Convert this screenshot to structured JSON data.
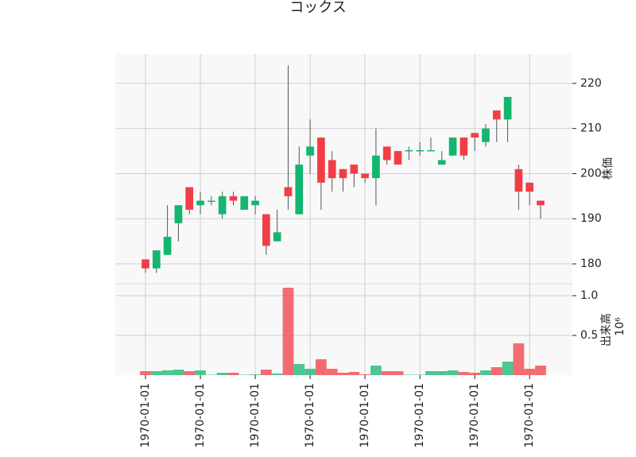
{
  "chart_data": {
    "type": "candlestick",
    "title": "コックス",
    "ylabel": "株価",
    "volume_label": "出来高",
    "volume_scale_label": "10⁶",
    "up_color": "#14b56f",
    "down_color": "#f23d46",
    "grid": true,
    "categories": [
      "1970-01-01",
      null,
      null,
      null,
      null,
      "1970-01-01",
      null,
      null,
      null,
      null,
      "1970-01-01",
      null,
      null,
      null,
      null,
      "1970-01-01",
      null,
      null,
      null,
      null,
      "1970-01-01",
      null,
      null,
      null,
      null,
      "1970-01-01",
      null,
      null,
      null,
      null,
      "1970-01-01",
      null,
      null,
      null,
      null,
      "1970-01-01",
      null
    ],
    "open": [
      181,
      179,
      182,
      189,
      197,
      193,
      193.8,
      191,
      195,
      192,
      193,
      191,
      185,
      197,
      191,
      204,
      208,
      203,
      201,
      202,
      200,
      199,
      206,
      205,
      205,
      205,
      205,
      202,
      204,
      208,
      209,
      207,
      214,
      212,
      201,
      198,
      194
    ],
    "high": [
      181,
      183,
      193,
      193,
      197,
      196,
      195,
      196,
      196,
      195,
      195,
      191,
      192,
      224,
      206,
      212,
      208,
      205,
      201,
      202,
      200,
      210,
      206,
      205,
      206,
      207,
      208,
      205,
      208,
      208,
      209,
      211,
      214,
      217,
      202,
      198,
      194
    ],
    "low": [
      178,
      178,
      182,
      185,
      191,
      191,
      193,
      190,
      193,
      192,
      191,
      182,
      185,
      192,
      191,
      200,
      192,
      196,
      196,
      197,
      198,
      193,
      202,
      202,
      203,
      204,
      205,
      202,
      204,
      203,
      205,
      206,
      207,
      207,
      192,
      193,
      190
    ],
    "close": [
      179,
      183,
      186,
      193,
      192,
      194,
      194,
      195,
      194,
      195,
      194,
      184,
      187,
      195,
      202,
      206,
      198,
      199,
      199,
      200,
      199,
      204,
      203,
      202,
      205.2,
      205.2,
      205.2,
      203,
      208,
      204,
      208,
      210,
      212,
      217,
      196,
      196,
      193
    ],
    "volume": [
      0.05,
      0.05,
      0.06,
      0.07,
      0.05,
      0.06,
      0.005,
      0.03,
      0.03,
      0.005,
      0.01,
      0.07,
      0.02,
      1.1,
      0.14,
      0.08,
      0.2,
      0.08,
      0.03,
      0.04,
      0.01,
      0.12,
      0.05,
      0.05,
      0.005,
      0.005,
      0.05,
      0.05,
      0.06,
      0.04,
      0.03,
      0.06,
      0.1,
      0.17,
      0.4,
      0.08,
      0.12
    ],
    "ylim": [
      175.6,
      226.5
    ],
    "yticks": [
      180,
      190,
      200,
      210,
      220
    ],
    "volume_ylim": [
      0,
      1.15
    ],
    "volume_yticks": [
      {
        "value": 0.5,
        "label": "0.5"
      },
      {
        "value": 1,
        "label": "1.0"
      }
    ]
  }
}
